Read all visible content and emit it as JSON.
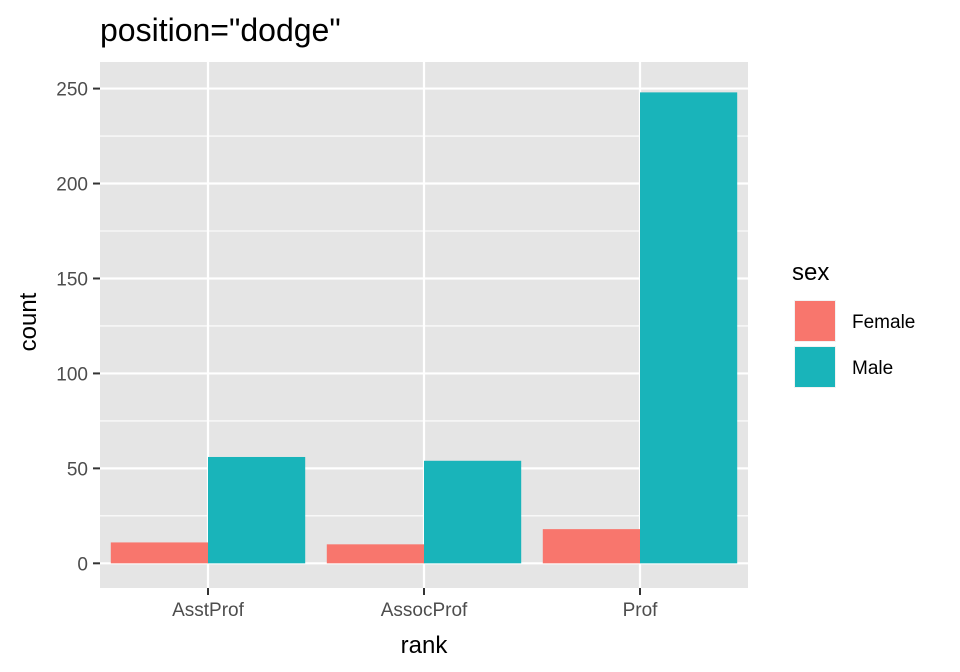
{
  "chart_data": {
    "type": "bar",
    "title": "position=\"dodge\"",
    "xlabel": "rank",
    "ylabel": "count",
    "categories": [
      "AsstProf",
      "AssocProf",
      "Prof"
    ],
    "series": [
      {
        "name": "Female",
        "values": [
          11,
          10,
          18
        ],
        "color": "#F8766D"
      },
      {
        "name": "Male",
        "values": [
          56,
          54,
          248
        ],
        "color": "#19B4BA"
      }
    ],
    "ylim": [
      -13,
      264
    ],
    "yticks": [
      0,
      50,
      100,
      150,
      200,
      250
    ],
    "grid": true,
    "panel_background": "#e5e5e5",
    "grid_color": "#ffffff",
    "legend": {
      "title": "sex",
      "position": "right"
    }
  }
}
